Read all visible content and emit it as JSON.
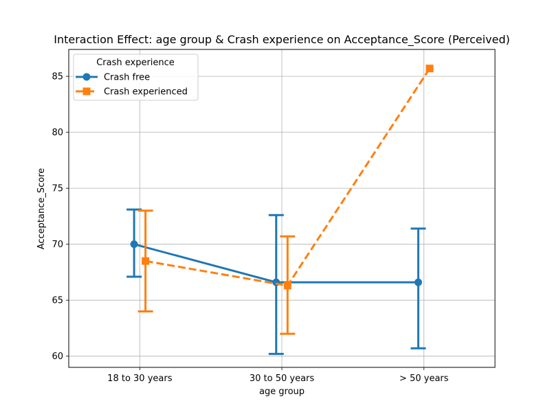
{
  "chart_data": {
    "type": "line",
    "title": "Interaction Effect: age group & Crash experience on Acceptance_Score (Perceived)",
    "xlabel": "age group",
    "ylabel": "Acceptance_Score",
    "categories": [
      "18 to 30 years",
      "30 to 50 years",
      "> 50 years"
    ],
    "ylim": [
      59.0,
      87.4
    ],
    "yticks": [
      60,
      65,
      70,
      75,
      80,
      85
    ],
    "grid": true,
    "legend": {
      "title": "Crash experience",
      "placement": "top-left"
    },
    "series": [
      {
        "name": "Crash free",
        "color": "#1f77b4",
        "marker": "circle",
        "linestyle": "solid",
        "values": [
          70.0,
          66.6,
          66.6
        ],
        "ci_low": [
          67.1,
          60.2,
          60.7
        ],
        "ci_high": [
          73.1,
          72.6,
          71.4
        ]
      },
      {
        "name": "Crash experienced",
        "color": "#ff7f0e",
        "marker": "square",
        "linestyle": "dashed",
        "values": [
          68.5,
          66.3,
          85.7
        ],
        "ci_low": [
          64.0,
          62.0,
          null
        ],
        "ci_high": [
          73.0,
          70.7,
          null
        ]
      }
    ]
  }
}
